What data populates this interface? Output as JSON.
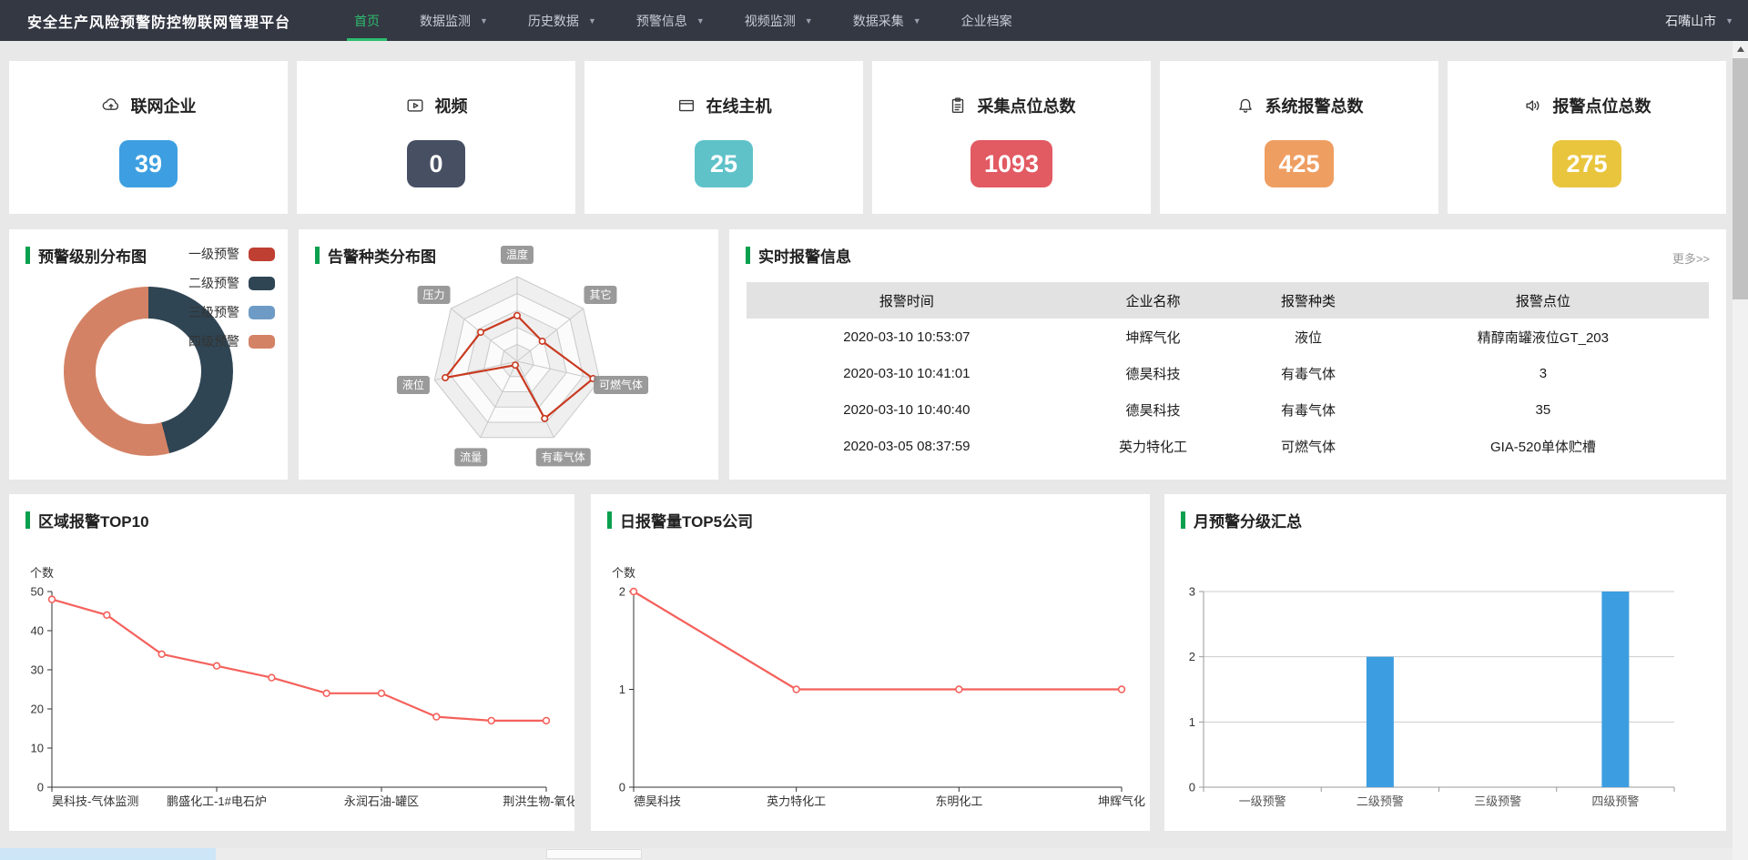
{
  "nav": {
    "title": "安全生产风险预警防控物联网管理平台",
    "region": "石嘴山市",
    "items": [
      {
        "name": "nav-item-home",
        "label": "首页",
        "active": true,
        "dropdown": false
      },
      {
        "name": "nav-item-data-monitoring",
        "label": "数据监测",
        "active": false,
        "dropdown": true
      },
      {
        "name": "nav-item-history-data",
        "label": "历史数据",
        "active": false,
        "dropdown": true
      },
      {
        "name": "nav-item-alert-info",
        "label": "预警信息",
        "active": false,
        "dropdown": true
      },
      {
        "name": "nav-item-video-monitoring",
        "label": "视频监测",
        "active": false,
        "dropdown": true
      },
      {
        "name": "nav-item-data-collection",
        "label": "数据采集",
        "active": false,
        "dropdown": true
      },
      {
        "name": "nav-item-enterprise-archive",
        "label": "企业档案",
        "active": false,
        "dropdown": false
      }
    ]
  },
  "stats": [
    {
      "name": "stat-connected-enterprises",
      "icon": "cloud-icon",
      "label": "联网企业",
      "value": "39",
      "color": "#3d9fe1"
    },
    {
      "name": "stat-videos",
      "icon": "video-icon",
      "label": "视频",
      "value": "0",
      "color": "#474f63"
    },
    {
      "name": "stat-online-hosts",
      "icon": "monitor-icon",
      "label": "在线主机",
      "value": "25",
      "color": "#5fc2c9"
    },
    {
      "name": "stat-collection-points",
      "icon": "clipboard-icon",
      "label": "采集点位总数",
      "value": "1093",
      "color": "#e25a62"
    },
    {
      "name": "stat-system-alarms",
      "icon": "bell-icon",
      "label": "系统报警总数",
      "value": "425",
      "color": "#ef9e62"
    },
    {
      "name": "stat-alarm-points",
      "icon": "speaker-icon",
      "label": "报警点位总数",
      "value": "275",
      "color": "#e9c53e"
    }
  ],
  "panels": {
    "level_dist": {
      "title": "预警级别分布图"
    },
    "alarm_type": {
      "title": "告警种类分布图"
    },
    "realtime": {
      "title": "实时报警信息",
      "more_link": "更多>>",
      "columns": [
        "报警时间",
        "企业名称",
        "报警种类",
        "报警点位"
      ],
      "rows": [
        [
          "2020-03-10 10:53:07",
          "坤辉气化",
          "液位",
          "精醇南罐液位GT_203"
        ],
        [
          "2020-03-10 10:41:01",
          "德昊科技",
          "有毒气体",
          "3"
        ],
        [
          "2020-03-10 10:40:40",
          "德昊科技",
          "有毒气体",
          "35"
        ],
        [
          "2020-03-05 08:37:59",
          "英力特化工",
          "可燃气体",
          "GIA-520单体贮槽"
        ]
      ]
    },
    "region_top10": {
      "title": "区域报警TOP10"
    },
    "daily_top5": {
      "title": "日报警量TOP5公司"
    },
    "monthly_summary": {
      "title": "月预警分级汇总"
    }
  },
  "chart_data": [
    {
      "id": "level_donut",
      "type": "pie",
      "title": "预警级别分布图",
      "categories": [
        "一级预警",
        "二级预警",
        "三级预警",
        "四级预警"
      ],
      "values": [
        0,
        46,
        0,
        54
      ],
      "value_unit": "percent-estimated",
      "colors": [
        "#bf3f32",
        "#2f4554",
        "#6e9bc5",
        "#d48265"
      ],
      "legend_position": "right",
      "donut": true
    },
    {
      "id": "alarm_radar",
      "type": "radar",
      "title": "告警种类分布图",
      "axes": [
        "温度",
        "其它",
        "可燃气体",
        "有毒气体",
        "流量",
        "液位",
        "压力"
      ],
      "values": [
        54,
        38,
        92,
        75,
        5,
        87,
        55
      ],
      "max": 100,
      "levels": 5,
      "color": "#c93a20"
    },
    {
      "id": "region_top10",
      "type": "line",
      "title": "区域报警TOP10",
      "ylabel": "个数",
      "ylim": [
        0,
        50
      ],
      "yticks": [
        0,
        10,
        20,
        30,
        40,
        50
      ],
      "values": [
        48,
        44,
        34,
        31,
        28,
        24,
        24,
        18,
        17,
        17
      ],
      "label_indices": [
        0,
        3,
        6,
        9
      ],
      "x_labels_shown": [
        "昊科技-气体监测",
        "鹏盛化工-1#电石炉",
        "永润石油-罐区",
        "荆洪生物-氧化反"
      ],
      "color": "#f4615c",
      "grid": false
    },
    {
      "id": "daily_top5",
      "type": "line",
      "title": "日报警量TOP5公司",
      "ylabel": "个数",
      "ylim": [
        0,
        2
      ],
      "yticks": [
        0,
        1,
        2
      ],
      "categories": [
        "德昊科技",
        "英力特化工",
        "东明化工",
        "坤辉气化"
      ],
      "values": [
        2,
        1,
        1,
        1
      ],
      "color": "#f4615c",
      "grid": false
    },
    {
      "id": "monthly_bar",
      "type": "bar",
      "title": "月预警分级汇总",
      "ylabel": "",
      "ylim": [
        0,
        3
      ],
      "yticks": [
        0,
        1,
        2,
        3
      ],
      "categories": [
        "一级预警",
        "二级预警",
        "三级预警",
        "四级预警"
      ],
      "values": [
        0,
        2,
        0,
        3
      ],
      "color": "#3c9ee0",
      "grid": true
    }
  ]
}
